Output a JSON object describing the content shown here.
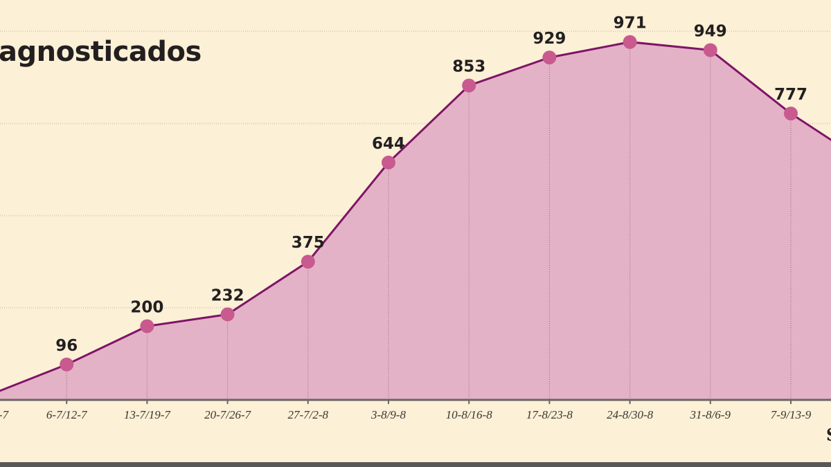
{
  "chart_data": {
    "type": "area",
    "title": "agnosticados",
    "xlabel": "S",
    "ylabel": "",
    "categories": [
      "-7",
      "6-7/12-7",
      "13-7/19-7",
      "20-7/26-7",
      "27-7/2-8",
      "3-8/9-8",
      "10-8/16-8",
      "17-8/23-8",
      "24-8/30-8",
      "31-8/6-9",
      "7-9/13-9",
      ""
    ],
    "values": [
      10,
      96,
      200,
      232,
      375,
      644,
      853,
      929,
      971,
      949,
      777,
      634
    ],
    "data_labels_visible": [
      false,
      true,
      true,
      true,
      true,
      true,
      true,
      true,
      true,
      true,
      true,
      false
    ],
    "ylim": [
      0,
      1085
    ],
    "gridlines_y": [
      250,
      500,
      750,
      1000
    ],
    "grid": true,
    "colors": {
      "background": "#fcf0d6",
      "area_fill": "#e4b2c6",
      "line": "#7e1468",
      "marker": "#c85a8f",
      "gridline": "#d9cfb8",
      "axis": "#6b6564"
    }
  }
}
